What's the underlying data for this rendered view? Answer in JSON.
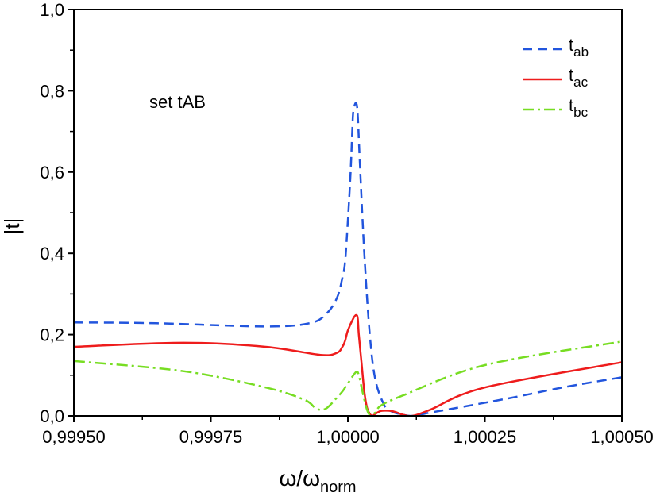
{
  "chart_data": {
    "type": "line",
    "title": "",
    "annotation": "set tAB",
    "xlabel": {
      "main": "ω/ω",
      "sub": "norm"
    },
    "ylabel": "|t|",
    "xlim": [
      0.9995,
      1.0005
    ],
    "ylim": [
      0.0,
      1.0
    ],
    "x_ticks": [
      {
        "value": 0.9995,
        "label": "0,99950"
      },
      {
        "value": 0.99975,
        "label": "0,99975"
      },
      {
        "value": 1.0,
        "label": "1,00000"
      },
      {
        "value": 1.00025,
        "label": "1,00025"
      },
      {
        "value": 1.0005,
        "label": "1,00050"
      }
    ],
    "y_ticks": [
      {
        "value": 0.0,
        "label": "0,0"
      },
      {
        "value": 0.2,
        "label": "0,2"
      },
      {
        "value": 0.4,
        "label": "0,4"
      },
      {
        "value": 0.6,
        "label": "0,6"
      },
      {
        "value": 0.8,
        "label": "0,8"
      },
      {
        "value": 1.0,
        "label": "1,0"
      }
    ],
    "legend_position": "top-right",
    "series": [
      {
        "name": "t_ab",
        "label_main": "t",
        "label_sub": "ab",
        "color": "#2255dd",
        "style": "dash",
        "x": [
          0.9995,
          0.99965,
          0.99985,
          0.99993,
          0.99996,
          0.99998,
          0.99999,
          0.999995,
          1.0,
          1.000005,
          1.000008,
          1.00001,
          1.000015,
          1.000018,
          1.000022,
          1.00003,
          1.00004,
          1.00005,
          1.000065,
          1.000075,
          1.000085,
          1.0001,
          1.000118,
          1.00015,
          1.0002,
          1.0003,
          1.0004,
          1.0005
        ],
        "values": [
          0.23,
          0.228,
          0.22,
          0.228,
          0.25,
          0.29,
          0.34,
          0.38,
          0.48,
          0.6,
          0.7,
          0.75,
          0.77,
          0.74,
          0.62,
          0.4,
          0.2,
          0.09,
          0.03,
          0.015,
          0.008,
          0.003,
          0.0,
          0.008,
          0.02,
          0.045,
          0.072,
          0.095
        ]
      },
      {
        "name": "t_ac",
        "label_main": "t",
        "label_sub": "ac",
        "color": "#ee1c1c",
        "style": "solid",
        "x": [
          0.9995,
          0.9997,
          0.99985,
          0.99995,
          0.99998,
          0.99999,
          0.999995,
          1.0,
          1.00001,
          1.000015,
          1.000018,
          1.00002,
          1.000025,
          1.00003,
          1.000035,
          1.00004,
          1.000045,
          1.00005,
          1.00006,
          1.00007,
          1.00008,
          1.00009,
          1.0001,
          1.000118,
          1.00015,
          1.00025,
          1.0005
        ],
        "values": [
          0.17,
          0.18,
          0.17,
          0.15,
          0.155,
          0.17,
          0.185,
          0.21,
          0.24,
          0.248,
          0.24,
          0.2,
          0.13,
          0.06,
          0.02,
          0.005,
          0.0,
          0.005,
          0.012,
          0.013,
          0.012,
          0.008,
          0.003,
          0.0,
          0.015,
          0.07,
          0.132
        ]
      },
      {
        "name": "t_bc",
        "label_main": "t",
        "label_sub": "bc",
        "color": "#77dd22",
        "style": "dashdot",
        "x": [
          0.9995,
          0.9997,
          0.99985,
          0.99992,
          0.99994,
          0.99995,
          0.99996,
          0.99997,
          0.99998,
          0.99999,
          1.0,
          1.000015,
          1.00002,
          1.000025,
          1.00003,
          1.000035,
          1.00004,
          1.00005,
          1.00006,
          1.0001,
          1.00025,
          1.0005
        ],
        "values": [
          0.135,
          0.11,
          0.07,
          0.04,
          0.02,
          0.015,
          0.018,
          0.03,
          0.045,
          0.06,
          0.08,
          0.108,
          0.1,
          0.07,
          0.04,
          0.015,
          0.003,
          0.008,
          0.025,
          0.05,
          0.125,
          0.183
        ]
      }
    ]
  }
}
